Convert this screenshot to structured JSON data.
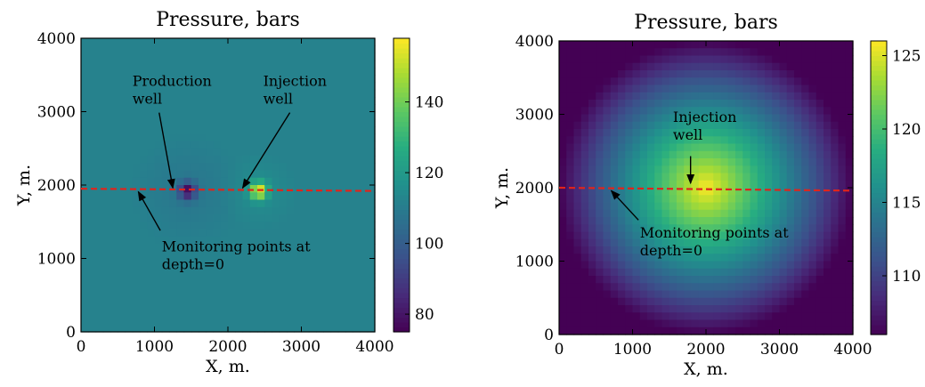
{
  "chart_data": [
    {
      "type": "heatmap",
      "title": "Pressure, bars",
      "xlabel": "X, m.",
      "ylabel": "Y, m.",
      "xlim": [
        0,
        4000
      ],
      "ylim": [
        0,
        4000
      ],
      "x_ticks": [
        0,
        1000,
        2000,
        3000,
        4000
      ],
      "y_ticks": [
        0,
        1000,
        2000,
        3000,
        4000
      ],
      "colorbar": {
        "min": 75,
        "max": 158,
        "ticks": [
          80,
          100,
          120,
          140
        ],
        "colormap": "viridis"
      },
      "field": {
        "background": 112,
        "sources": [
          {
            "kind": "production",
            "x": 1450,
            "y": 1920,
            "value": 76,
            "halo_value": 108,
            "halo_radius": 820
          },
          {
            "kind": "injection",
            "x": 2420,
            "y": 1920,
            "value": 158,
            "halo_value": 116,
            "halo_radius": 550
          }
        ]
      },
      "monitoring_line": {
        "y_start": 1950,
        "y_end": 1920,
        "color": "#e0241c"
      },
      "annotations": [
        {
          "id": "production",
          "lines": [
            "Production",
            "well"
          ],
          "text_x": 700,
          "text_y": 3350,
          "arrow_to": [
            1250,
            1960
          ]
        },
        {
          "id": "injection",
          "lines": [
            "Injection",
            "well"
          ],
          "text_x": 2480,
          "text_y": 3350,
          "arrow_to": [
            2200,
            1960
          ]
        },
        {
          "id": "monitoring",
          "lines": [
            "Monitoring points at",
            "depth=0"
          ],
          "text_x": 1100,
          "text_y": 1100,
          "arrow_to": [
            780,
            1910
          ],
          "arrow_from": [
            1080,
            1380
          ]
        }
      ]
    },
    {
      "type": "heatmap",
      "title": "Pressure, bars",
      "xlabel": "X, m.",
      "ylabel": "Y, m.",
      "xlim": [
        0,
        4000
      ],
      "ylim": [
        0,
        4000
      ],
      "x_ticks": [
        0,
        1000,
        2000,
        3000,
        4000
      ],
      "y_ticks": [
        0,
        1000,
        2000,
        3000,
        4000
      ],
      "colorbar": {
        "min": 106,
        "max": 126,
        "ticks": [
          110,
          115,
          120,
          125
        ],
        "colormap": "viridis"
      },
      "field": {
        "background": 106,
        "sources": [
          {
            "kind": "injection",
            "x": 2000,
            "y": 2000,
            "value": 126,
            "halo_value": 126,
            "halo_radius": 2000
          }
        ]
      },
      "monitoring_line": {
        "y_start": 2000,
        "y_end": 1960,
        "color": "#e0241c"
      },
      "annotations": [
        {
          "id": "injection",
          "lines": [
            "Injection",
            "well"
          ],
          "text_x": 1550,
          "text_y": 2900,
          "arrow_to": [
            1790,
            2060
          ],
          "arrow_from": [
            1790,
            2430
          ]
        },
        {
          "id": "monitoring",
          "lines": [
            "Monitoring points at",
            "depth=0"
          ],
          "text_x": 1100,
          "text_y": 1320,
          "arrow_to": [
            710,
            1960
          ],
          "arrow_from": [
            1080,
            1560
          ]
        }
      ]
    }
  ]
}
